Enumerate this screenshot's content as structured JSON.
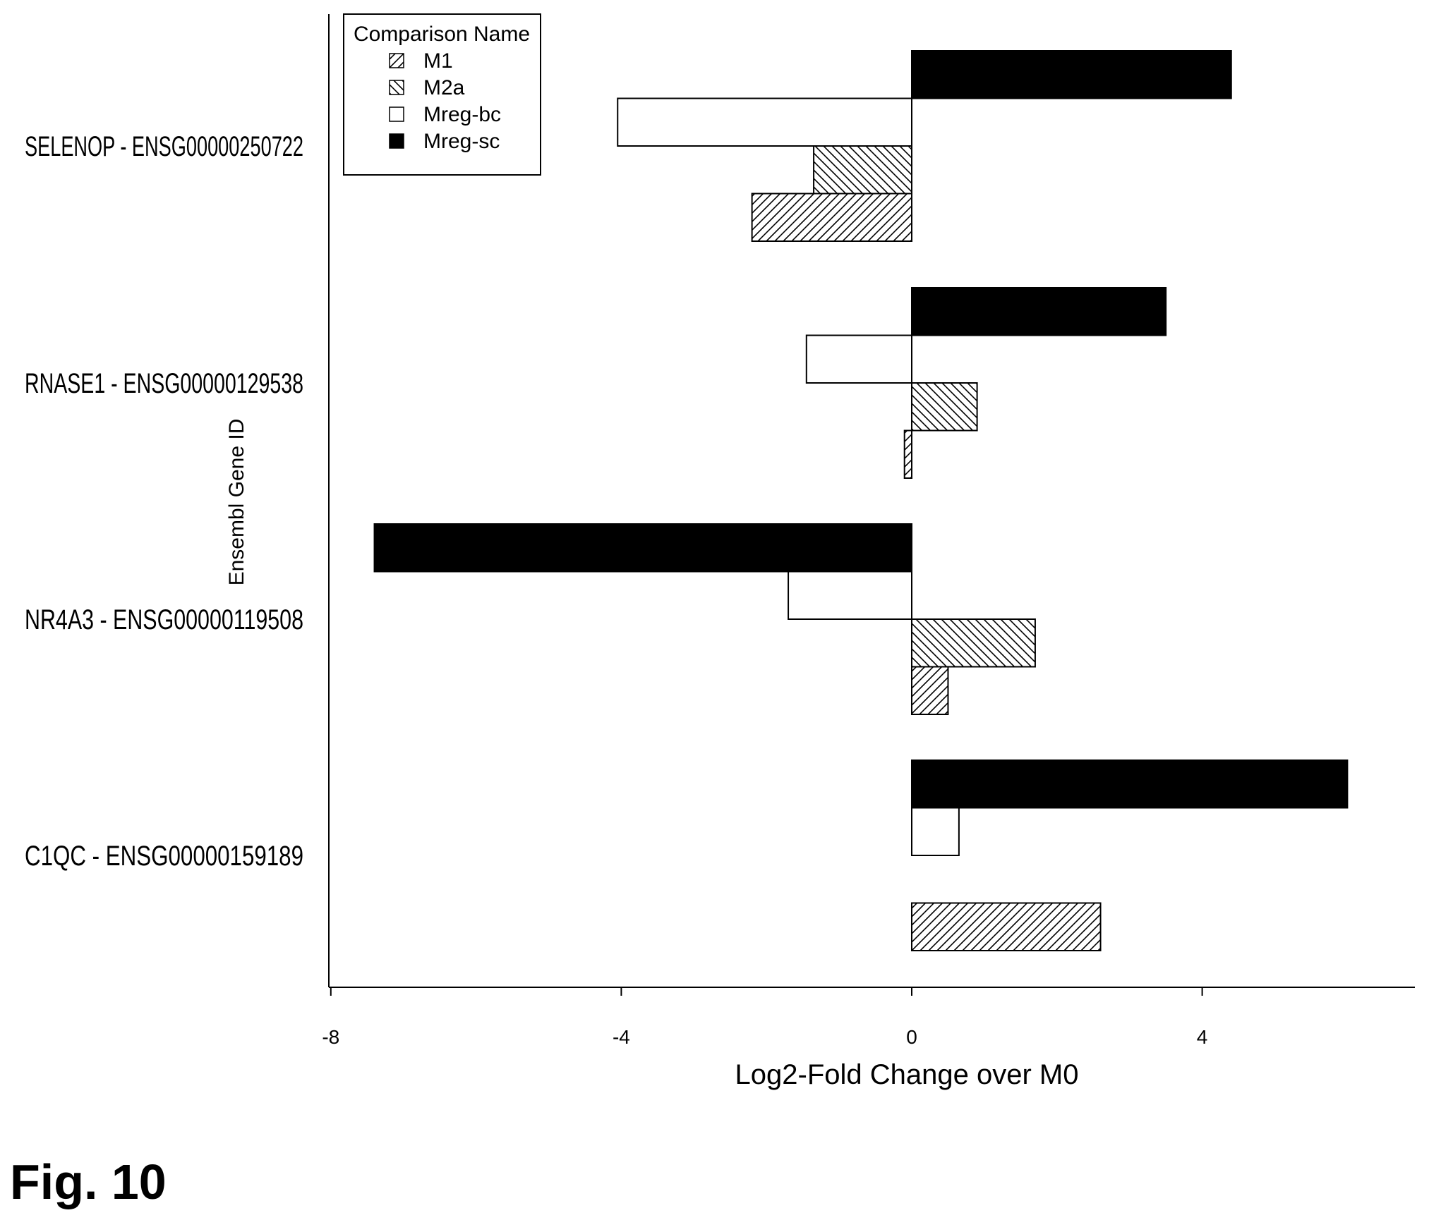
{
  "chart_data": {
    "type": "bar",
    "orientation": "horizontal",
    "categories": [
      "SELENOP - ENSG00000250722",
      "RNASE1 - ENSG00000129538",
      "NR4A3 - ENSG00000119508",
      "C1QC - ENSG00000159189"
    ],
    "series": [
      {
        "name": "M1",
        "pattern": "hatch-forward",
        "values": [
          -2.2,
          -0.1,
          0.5,
          2.6
        ]
      },
      {
        "name": "M2a",
        "pattern": "hatch-back",
        "values": [
          -1.35,
          0.9,
          1.7,
          0.0
        ]
      },
      {
        "name": "Mreg-bc",
        "pattern": "empty",
        "values": [
          -4.05,
          -1.45,
          -1.7,
          0.65
        ]
      },
      {
        "name": "Mreg-sc",
        "pattern": "solid",
        "values": [
          4.4,
          3.5,
          -7.4,
          6.0
        ]
      }
    ],
    "xlabel": "Log2-Fold Change over M0",
    "ylabel": "Ensembl Gene ID",
    "xlim": [
      -8,
      7
    ],
    "xticks": [
      "-8",
      "-4",
      "0",
      "4"
    ],
    "xtick_values": [
      -8,
      -4,
      0,
      4
    ],
    "legend_title": "Comparison Name",
    "legend_position": "top-left",
    "grid": false,
    "colors": {
      "fill": "#000000",
      "stroke": "#000000",
      "background": "#ffffff"
    }
  },
  "figure_label": "Fig. 10"
}
